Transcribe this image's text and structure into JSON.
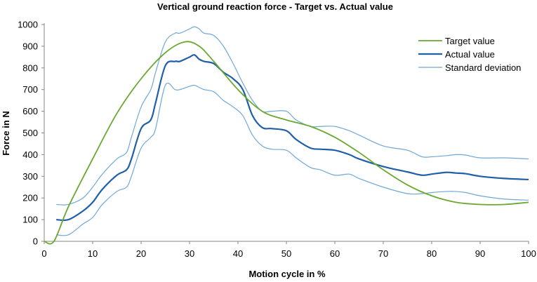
{
  "chart_data": {
    "type": "line",
    "title": "Vertical ground reaction force - Target vs. Actual value",
    "xlabel": "Motion cycle in %",
    "ylabel": "Force in N",
    "xlim": [
      0,
      100
    ],
    "ylim": [
      0,
      1000
    ],
    "xticks": [
      0,
      10,
      20,
      30,
      40,
      50,
      60,
      70,
      80,
      90,
      100
    ],
    "yticks": [
      0,
      100,
      200,
      300,
      400,
      500,
      600,
      700,
      800,
      900,
      1000
    ],
    "grid": false,
    "legend_position": "top-right",
    "series": [
      {
        "name": "Target value",
        "color": "#6aa82f",
        "x": [
          0,
          2,
          5,
          10,
          15,
          20,
          25,
          29,
          32,
          35,
          40,
          45,
          50,
          55,
          60,
          65,
          70,
          75,
          80,
          85,
          90,
          95,
          100
        ],
        "y": [
          0,
          0,
          160,
          380,
          590,
          750,
          870,
          920,
          900,
          830,
          700,
          600,
          560,
          530,
          480,
          410,
          330,
          260,
          210,
          180,
          170,
          170,
          180
        ]
      },
      {
        "name": "Actual value",
        "color": "#1f5fa8",
        "x": [
          2.5,
          5,
          8,
          10,
          12,
          15,
          17,
          18,
          20,
          22,
          23,
          25,
          27,
          28,
          30,
          31,
          32,
          33,
          35,
          37,
          39,
          41,
          43,
          45,
          47,
          50,
          52,
          55,
          57,
          60,
          63,
          65,
          70,
          75,
          78,
          80,
          83,
          85,
          87,
          90,
          95,
          100
        ],
        "y": [
          100,
          100,
          140,
          180,
          240,
          305,
          330,
          380,
          520,
          560,
          640,
          810,
          830,
          830,
          850,
          860,
          840,
          830,
          820,
          780,
          750,
          700,
          580,
          525,
          520,
          510,
          470,
          430,
          425,
          420,
          400,
          380,
          345,
          320,
          305,
          310,
          318,
          315,
          312,
          300,
          290,
          285
        ]
      },
      {
        "name": "Standard deviation",
        "color": "#6fa8d6",
        "x": [
          2.5,
          5,
          8,
          10,
          12,
          15,
          17,
          18,
          20,
          22,
          23,
          25,
          27,
          28,
          30,
          31,
          32,
          33,
          35,
          37,
          39,
          41,
          43,
          45,
          47,
          50,
          52,
          55,
          57,
          60,
          63,
          65,
          70,
          75,
          78,
          80,
          83,
          85,
          87,
          90,
          95,
          100
        ],
        "y": [
          170,
          170,
          200,
          250,
          310,
          380,
          410,
          480,
          620,
          700,
          780,
          920,
          960,
          960,
          980,
          990,
          980,
          960,
          950,
          900,
          820,
          730,
          650,
          600,
          600,
          600,
          560,
          530,
          530,
          530,
          510,
          490,
          440,
          420,
          390,
          390,
          395,
          400,
          398,
          385,
          385,
          380
        ]
      },
      {
        "name": "Standard deviation (lower)",
        "color": "#6fa8d6",
        "x": [
          2.5,
          5,
          8,
          10,
          12,
          15,
          17,
          18,
          20,
          22,
          23,
          25,
          27,
          28,
          30,
          31,
          32,
          33,
          35,
          37,
          39,
          41,
          43,
          45,
          47,
          50,
          52,
          55,
          57,
          60,
          63,
          65,
          70,
          75,
          78,
          80,
          83,
          85,
          87,
          90,
          95,
          100
        ],
        "y": [
          30,
          30,
          80,
          110,
          170,
          230,
          250,
          300,
          430,
          480,
          520,
          720,
          700,
          700,
          715,
          720,
          710,
          700,
          690,
          650,
          620,
          580,
          490,
          440,
          425,
          420,
          385,
          340,
          330,
          305,
          310,
          290,
          250,
          220,
          220,
          225,
          230,
          230,
          225,
          210,
          195,
          190
        ]
      }
    ],
    "legend": [
      "Target value",
      "Actual value",
      "Standard deviation"
    ]
  }
}
